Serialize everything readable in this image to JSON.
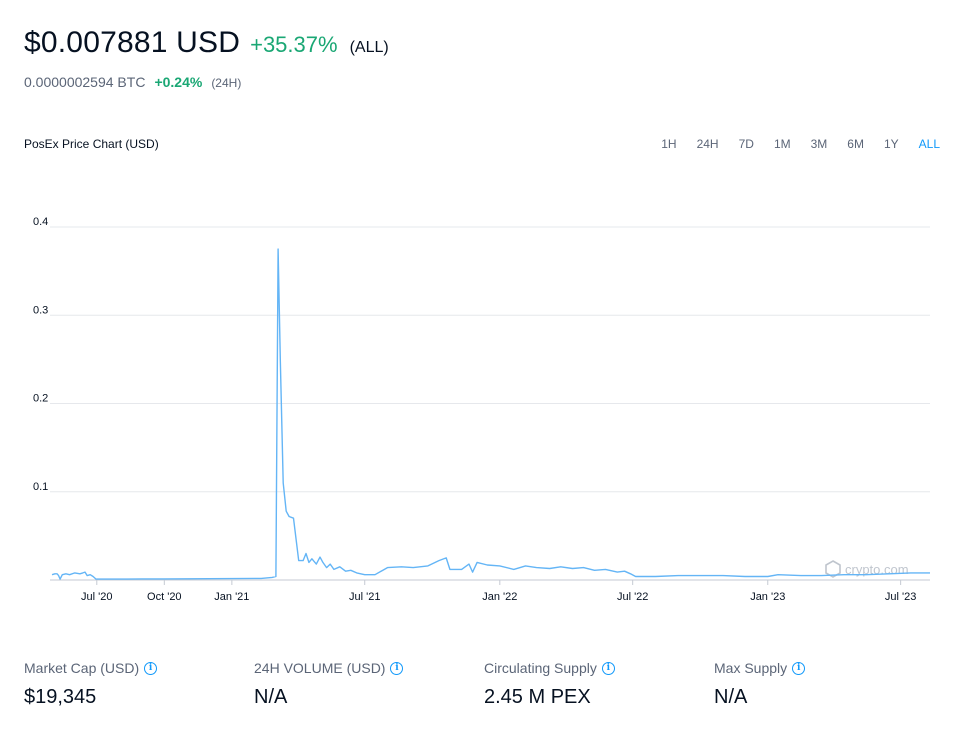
{
  "header": {
    "price": "$0.007881 USD",
    "change": "+35.37%",
    "period": "(ALL)",
    "btc_price": "0.0000002594 BTC",
    "btc_change": "+0.24%",
    "btc_period": "(24H)"
  },
  "chart_title": "PosEx Price Chart (USD)",
  "range_tabs": [
    "1H",
    "24H",
    "7D",
    "1M",
    "3M",
    "6M",
    "1Y",
    "ALL"
  ],
  "active_range": "ALL",
  "watermark": "crypto.com",
  "colors": {
    "line": "#64b5f6",
    "positive": "#1aa774",
    "accent": "#1199fa"
  },
  "chart_data": {
    "type": "line",
    "title": "PosEx Price Chart (USD)",
    "xlabel": "",
    "ylabel": "",
    "ylim": [
      0,
      0.4
    ],
    "y_ticks": [
      0.1,
      0.2,
      0.3,
      0.4
    ],
    "grid": true,
    "x_ticks": [
      {
        "date": "2020-07-01",
        "label": "Jul '20"
      },
      {
        "date": "2020-10-01",
        "label": "Oct '20"
      },
      {
        "date": "2021-01-01",
        "label": "Jan '21"
      },
      {
        "date": "2021-07-01",
        "label": "Jul '21"
      },
      {
        "date": "2022-01-01",
        "label": "Jan '22"
      },
      {
        "date": "2022-07-01",
        "label": "Jul '22"
      },
      {
        "date": "2023-01-01",
        "label": "Jan '23"
      },
      {
        "date": "2023-07-01",
        "label": "Jul '23"
      }
    ],
    "series": [
      {
        "points": [
          [
            "2020-05-01",
            0.006
          ],
          [
            "2020-05-05",
            0.007
          ],
          [
            "2020-05-08",
            0.007
          ],
          [
            "2020-05-10",
            0.005
          ],
          [
            "2020-05-12",
            0.001
          ],
          [
            "2020-05-15",
            0.006
          ],
          [
            "2020-05-20",
            0.007
          ],
          [
            "2020-05-25",
            0.006
          ],
          [
            "2020-06-01",
            0.008
          ],
          [
            "2020-06-08",
            0.007
          ],
          [
            "2020-06-12",
            0.008
          ],
          [
            "2020-06-15",
            0.009
          ],
          [
            "2020-06-18",
            0.005
          ],
          [
            "2020-06-22",
            0.006
          ],
          [
            "2020-06-26",
            0.004
          ],
          [
            "2020-06-30",
            0.001
          ],
          [
            "2020-08-01",
            0.001
          ],
          [
            "2020-09-01",
            0.0012
          ],
          [
            "2020-10-01",
            0.0013
          ],
          [
            "2020-11-01",
            0.0014
          ],
          [
            "2020-12-01",
            0.0015
          ],
          [
            "2021-01-01",
            0.0016
          ],
          [
            "2021-02-10",
            0.0018
          ],
          [
            "2021-02-25",
            0.003
          ],
          [
            "2021-03-02",
            0.004
          ],
          [
            "2021-03-05",
            0.375
          ],
          [
            "2021-03-08",
            0.25
          ],
          [
            "2021-03-12",
            0.11
          ],
          [
            "2021-03-16",
            0.078
          ],
          [
            "2021-03-20",
            0.072
          ],
          [
            "2021-03-26",
            0.07
          ],
          [
            "2021-04-02",
            0.022
          ],
          [
            "2021-04-08",
            0.022
          ],
          [
            "2021-04-12",
            0.03
          ],
          [
            "2021-04-16",
            0.02
          ],
          [
            "2021-04-20",
            0.024
          ],
          [
            "2021-04-26",
            0.018
          ],
          [
            "2021-05-01",
            0.026
          ],
          [
            "2021-05-05",
            0.02
          ],
          [
            "2021-05-10",
            0.014
          ],
          [
            "2021-05-15",
            0.018
          ],
          [
            "2021-05-20",
            0.012
          ],
          [
            "2021-05-28",
            0.015
          ],
          [
            "2021-06-05",
            0.01
          ],
          [
            "2021-06-12",
            0.011
          ],
          [
            "2021-06-20",
            0.008
          ],
          [
            "2021-07-01",
            0.006
          ],
          [
            "2021-07-15",
            0.006
          ],
          [
            "2021-08-01",
            0.014
          ],
          [
            "2021-08-20",
            0.015
          ],
          [
            "2021-09-05",
            0.014
          ],
          [
            "2021-09-25",
            0.016
          ],
          [
            "2021-10-10",
            0.022
          ],
          [
            "2021-10-20",
            0.025
          ],
          [
            "2021-10-25",
            0.012
          ],
          [
            "2021-11-10",
            0.012
          ],
          [
            "2021-11-20",
            0.018
          ],
          [
            "2021-11-25",
            0.009
          ],
          [
            "2021-12-01",
            0.02
          ],
          [
            "2021-12-15",
            0.017
          ],
          [
            "2022-01-01",
            0.016
          ],
          [
            "2022-01-20",
            0.012
          ],
          [
            "2022-02-05",
            0.016
          ],
          [
            "2022-02-20",
            0.014
          ],
          [
            "2022-03-10",
            0.013
          ],
          [
            "2022-03-25",
            0.015
          ],
          [
            "2022-04-10",
            0.013
          ],
          [
            "2022-04-25",
            0.014
          ],
          [
            "2022-05-10",
            0.011
          ],
          [
            "2022-05-25",
            0.012
          ],
          [
            "2022-06-10",
            0.009
          ],
          [
            "2022-06-20",
            0.01
          ],
          [
            "2022-06-28",
            0.007
          ],
          [
            "2022-07-05",
            0.004
          ],
          [
            "2022-08-01",
            0.004
          ],
          [
            "2022-09-01",
            0.005
          ],
          [
            "2022-10-01",
            0.005
          ],
          [
            "2022-11-01",
            0.005
          ],
          [
            "2022-12-01",
            0.004
          ],
          [
            "2023-01-01",
            0.004
          ],
          [
            "2023-01-15",
            0.006
          ],
          [
            "2023-02-15",
            0.005
          ],
          [
            "2023-03-15",
            0.005
          ],
          [
            "2023-04-15",
            0.006
          ],
          [
            "2023-05-15",
            0.006
          ],
          [
            "2023-06-15",
            0.007
          ],
          [
            "2023-07-15",
            0.008
          ],
          [
            "2023-08-10",
            0.008
          ]
        ]
      }
    ]
  },
  "stats": [
    {
      "label": "Market Cap (USD)",
      "value": "$19,345"
    },
    {
      "label": "24H VOLUME (USD)",
      "value": "N/A"
    },
    {
      "label": "Circulating Supply",
      "value": "2.45 M PEX"
    },
    {
      "label": "Max Supply",
      "value": "N/A"
    }
  ]
}
